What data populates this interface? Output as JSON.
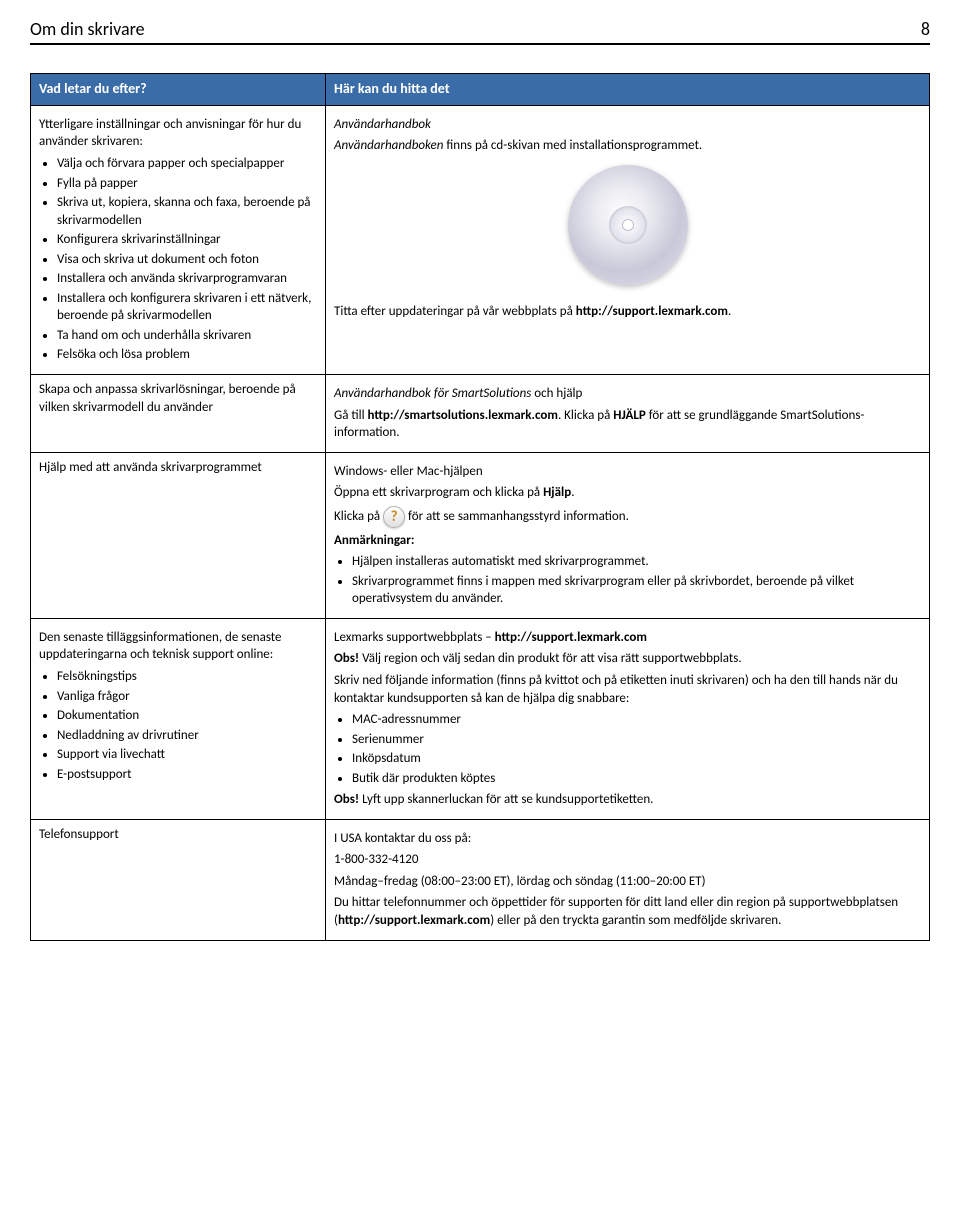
{
  "header": {
    "title": "Om din skrivare",
    "page_number": "8"
  },
  "table": {
    "th_left": "Vad letar du efter?",
    "th_right": "Här kan du hitta det",
    "row1": {
      "left_intro": "Ytterligare inställningar och anvisningar för hur du använder skrivaren:",
      "left_bullets": [
        "Välja och förvara papper och specialpapper",
        "Fylla på papper",
        "Skriva ut, kopiera, skanna och faxa, beroende på skrivarmodellen",
        "Konfigurera skrivarinställningar",
        "Visa och skriva ut dokument och foton",
        "Installera och använda skrivarprogramvaran",
        "Installera och konfigurera skrivaren i ett nätverk, beroende på skrivarmodellen",
        "Ta hand om och underhålla skrivaren",
        "Felsöka och lösa problem"
      ],
      "right_title": "Användarhandbok",
      "right_line1_pre": "Användarhandboken",
      "right_line1_post": " finns på cd-skivan med installationsprogrammet.",
      "right_line2_pre": "Titta efter uppdateringar på vår webbplats på ",
      "right_line2_url": "http://support.lexmark.com",
      "right_line2_post": "."
    },
    "row2": {
      "left": "Skapa och anpassa skrivarlösningar, beroende på vilken skrivarmodell du använder",
      "right_title_pre": "Användarhandbok för SmartSolutions",
      "right_title_post": " och hjälp",
      "right_line_pre": "Gå till ",
      "right_line_url": "http://smartsolutions.lexmark.com",
      "right_line_mid": ". Klicka på ",
      "right_line_word": "HJÄLP",
      "right_line_post": " för att se grundläggande SmartSolutions-information."
    },
    "row3": {
      "left": "Hjälp med att använda skrivarprogrammet",
      "right_l1": "Windows- eller Mac-hjälpen",
      "right_l2_pre": "Öppna ett skrivarprogram och klicka på ",
      "right_l2_word": "Hjälp",
      "right_l2_post": ".",
      "right_l3_pre": "Klicka på ",
      "right_l3_post": " för att se sammanhangsstyrd information.",
      "right_note_label": "Anmärkningar:",
      "right_bullets": [
        "Hjälpen installeras automatiskt med skrivarprogrammet.",
        "Skrivarprogrammet finns i mappen med skrivarprogram eller på skrivbordet, beroende på vilket operativsystem du använder."
      ]
    },
    "row4": {
      "left_intro": "Den senaste tilläggsinformationen, de senaste uppdateringarna och teknisk support online:",
      "left_bullets": [
        "Felsökningstips",
        "Vanliga frågor",
        "Dokumentation",
        "Nedladdning av drivrutiner",
        "Support via livechatt",
        "E-postsupport"
      ],
      "right_l1_pre": "Lexmarks supportwebbplats – ",
      "right_l1_url": "http://support.lexmark.com",
      "right_l2_lbl": "Obs!",
      "right_l2_post": " Välj region och välj sedan din produkt för att visa rätt supportwebbplats.",
      "right_l3": "Skriv ned följande information (finns på kvittot och på etiketten inuti skrivaren) och ha den till hands när du kontaktar kundsupporten så kan de hjälpa dig snabbare:",
      "right_bullets": [
        "MAC-adressnummer",
        "Serienummer",
        "Inköpsdatum",
        "Butik där produkten köptes"
      ],
      "right_l4_lbl": "Obs!",
      "right_l4_post": " Lyft upp skannerluckan för att se kundsupportetiketten."
    },
    "row5": {
      "left": "Telefonsupport",
      "right_l1": "I USA kontaktar du oss på:",
      "right_l2": "1-800-332-4120",
      "right_l3": "Måndag–fredag (08:00–23:00 ET), lördag och söndag (11:00–20:00 ET)",
      "right_l4_pre": "Du hittar telefonnummer och öppettider för supporten för ditt land eller din region på supportwebbplatsen (",
      "right_l4_url": "http://support.lexmark.com",
      "right_l4_post": ") eller på den tryckta garantin som medföljde skrivaren."
    }
  }
}
